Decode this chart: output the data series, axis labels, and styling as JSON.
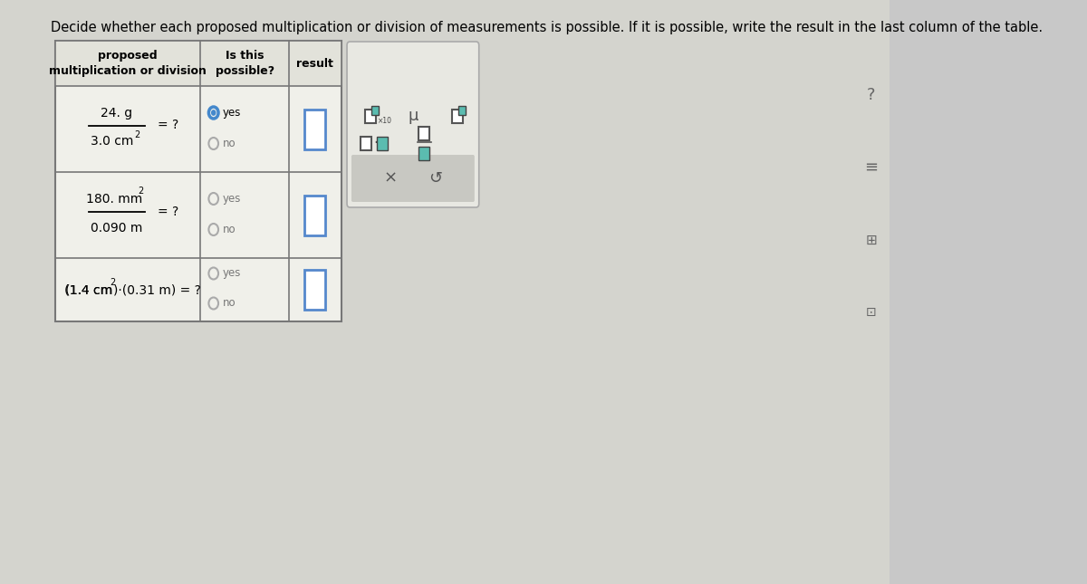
{
  "title": "Decide whether each proposed multiplication or division of measurements is possible. If it is possible, write the result in the last column of the table.",
  "title_fontsize": 10.5,
  "page_bg": "#c8c8c8",
  "table_bg": "#f0f0ea",
  "header_bg": "#e2e2da",
  "border_color": "#777777",
  "radio_selected_color": "#4488cc",
  "radio_unselected_color": "#aaaaaa",
  "result_box_color": "#5588cc",
  "teal_color": "#5bbcb0",
  "toolbar_bg": "#e8e8e2",
  "toolbar_strip_bg": "#c8c8c2",
  "col_headers": [
    "proposed\nmultiplication or division",
    "Is this\npossible?",
    "result"
  ],
  "rows": [
    {
      "yes_selected": true
    },
    {
      "yes_selected": false
    },
    {
      "yes_selected": false
    }
  ]
}
